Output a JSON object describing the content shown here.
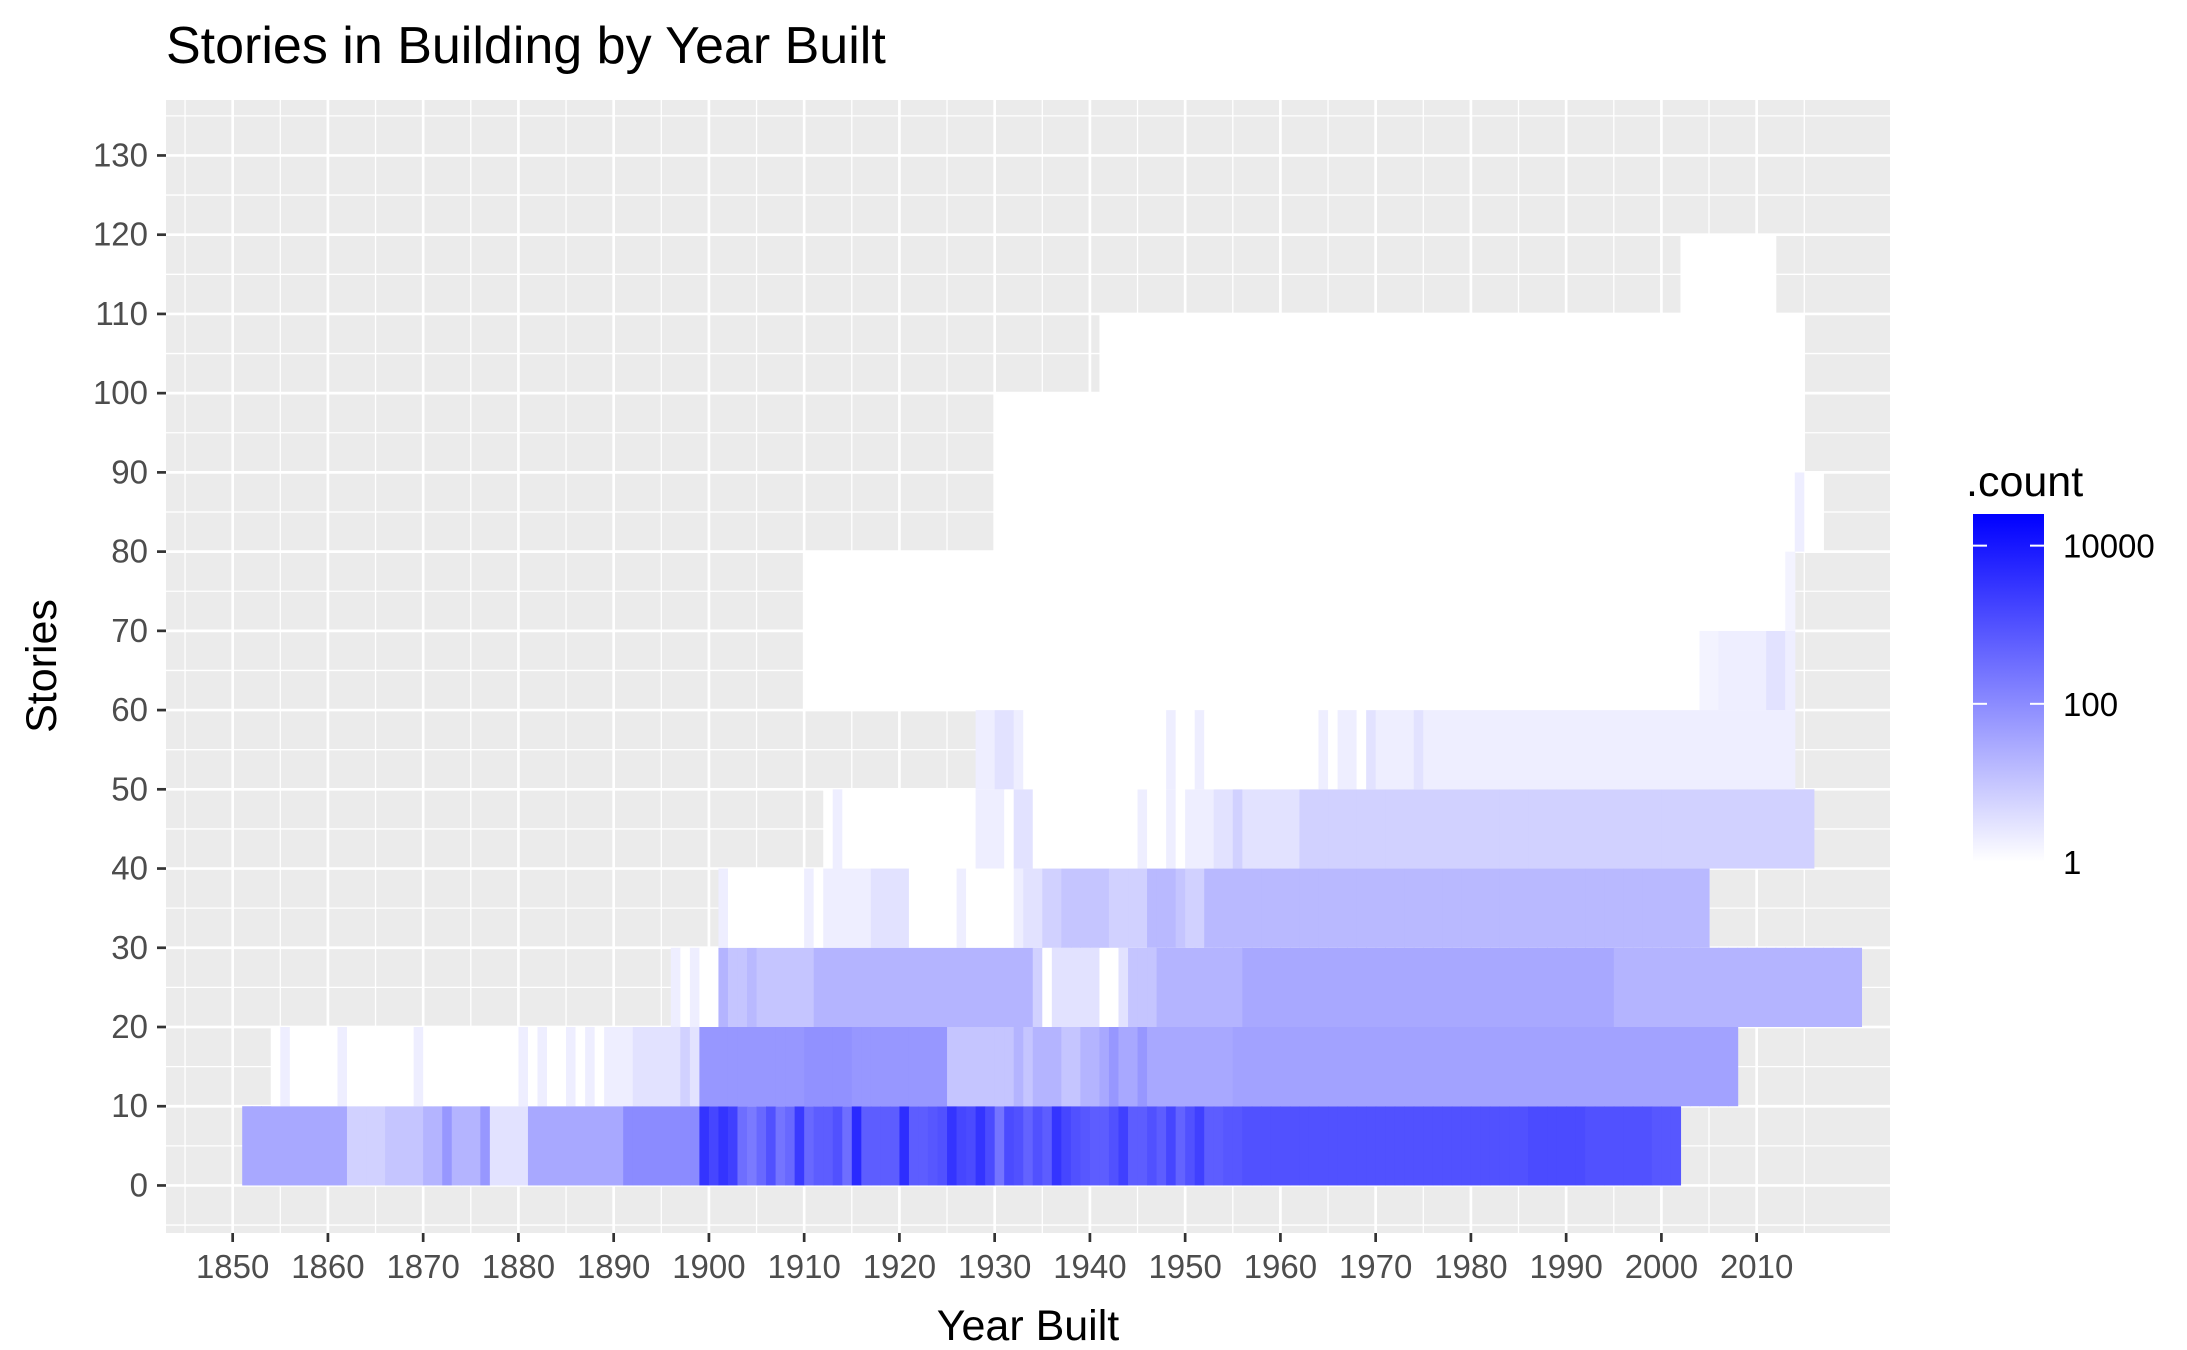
{
  "chart_data": {
    "type": "heatmap",
    "title": "Stories in Building by Year Built",
    "xlabel": "Year Built",
    "ylabel": "Stories",
    "xlim": [
      1843,
      2024
    ],
    "ylim": [
      -6,
      137
    ],
    "x_ticks": [
      "1850",
      "1860",
      "1870",
      "1880",
      "1890",
      "1900",
      "1910",
      "1920",
      "1930",
      "1940",
      "1950",
      "1960",
      "1970",
      "1980",
      "1990",
      "2000",
      "2010"
    ],
    "y_ticks": [
      "0",
      "10",
      "20",
      "30",
      "40",
      "50",
      "60",
      "70",
      "80",
      "90",
      "100",
      "110",
      "120",
      "130"
    ],
    "bin_width_years": 1,
    "bin_height_stories": 10,
    "row_labels": [
      "0-10",
      "10-20",
      "20-30",
      "30-40",
      "40-50",
      "50-60",
      "60-70",
      "70-80",
      "80-90",
      "90-100",
      "100-110",
      "110-120"
    ],
    "row_start_years": [
      1851,
      1854,
      1896,
      1901,
      1912,
      1928,
      1910,
      1910,
      1930,
      1930,
      1941,
      2002
    ],
    "rows": [
      [
        1.5,
        1.5,
        1.5,
        1.5,
        1.5,
        1.5,
        1.5,
        1.5,
        1.5,
        1.5,
        1.5,
        0.8,
        0.8,
        0.8,
        0.8,
        1,
        1,
        1,
        1,
        1.3,
        1.3,
        1.8,
        1.3,
        1.3,
        1.3,
        1.8,
        0.5,
        0.5,
        0.5,
        0.5,
        1.5,
        1.5,
        1.5,
        1.5,
        1.5,
        1.5,
        1.5,
        1.5,
        1.5,
        1.5,
        2.0,
        2.0,
        2.0,
        2.0,
        2.0,
        2.0,
        2.0,
        2.0,
        3.5,
        3.2,
        3.5,
        3.3,
        2.5,
        2.3,
        2.6,
        3.0,
        2.4,
        2.6,
        3.4,
        2.6,
        2.8,
        2.8,
        3.0,
        2.5,
        3.7,
        2.8,
        2.8,
        2.8,
        2.8,
        3.6,
        2.8,
        2.8,
        2.9,
        3.0,
        3.5,
        3.2,
        3.1,
        3.5,
        3.1,
        2.4,
        3.1,
        3.0,
        2.7,
        3.0,
        2.8,
        3.5,
        3.2,
        3.0,
        2.9,
        2.8,
        2.8,
        3.0,
        3.3,
        2.8,
        2.8,
        3.0,
        2.8,
        3.2,
        2.7,
        3.0,
        3.3,
        2.8,
        2.8,
        2.9,
        2.9,
        3.0,
        3.0,
        3.0,
        3.0,
        3.0,
        3.0,
        3.0,
        3.0,
        3.0,
        3.0,
        3.0,
        3.0,
        3.0,
        3.0,
        3.0,
        3.0,
        3.0,
        3.0,
        3.0,
        3.0,
        3.0,
        3.0,
        3.0,
        3.0,
        3.0,
        3.0,
        3.0,
        3.0,
        3.0,
        3.0,
        3.1,
        3.1,
        3.1,
        3.1,
        3.1,
        3.1,
        3.0,
        3.0,
        3.0,
        3.0,
        3.0,
        3.0,
        3.0,
        2.9,
        2.9,
        2.9
      ],
      [
        0,
        0.3,
        0,
        0,
        0,
        0,
        0,
        0.3,
        0,
        0,
        0,
        0,
        0,
        0,
        0,
        0.3,
        0,
        0,
        0,
        0,
        0,
        0,
        0,
        0,
        0,
        0,
        0.3,
        0,
        0.3,
        0,
        0,
        0.3,
        0,
        0.3,
        0,
        0.3,
        0.3,
        0.3,
        0.5,
        0.5,
        0.5,
        0.5,
        0.5,
        0.8,
        0.5,
        1.8,
        1.8,
        1.8,
        1.8,
        1.8,
        1.8,
        1.8,
        1.8,
        1.8,
        1.8,
        1.8,
        1.9,
        1.9,
        1.9,
        1.9,
        1.9,
        1.8,
        1.8,
        1.8,
        1.8,
        1.8,
        1.8,
        1.8,
        1.8,
        1.8,
        1.8,
        1.0,
        1.0,
        1.0,
        1.0,
        1.0,
        1.0,
        1.0,
        1.3,
        1.0,
        1.3,
        1.3,
        1.3,
        1.0,
        1.0,
        1.3,
        1.3,
        1.5,
        1.8,
        1.5,
        1.5,
        1.8,
        1.5,
        1.5,
        1.5,
        1.5,
        1.5,
        1.5,
        1.5,
        1.5,
        1.5,
        1.6,
        1.6,
        1.6,
        1.6,
        1.6,
        1.6,
        1.6,
        1.6,
        1.6,
        1.6,
        1.6,
        1.6,
        1.6,
        1.6,
        1.6,
        1.6,
        1.6,
        1.6,
        1.6,
        1.6,
        1.6,
        1.6,
        1.6,
        1.6,
        1.6,
        1.6,
        1.6,
        1.6,
        1.6,
        1.6,
        1.6,
        1.6,
        1.6,
        1.6,
        1.6,
        1.6,
        1.6,
        1.6,
        1.6,
        1.6,
        1.6,
        1.6,
        1.6,
        1.6,
        1.6,
        1.6,
        1.6,
        1.6,
        1.6,
        1.6,
        1.6,
        1.6,
        1.6
      ],
      [
        0.3,
        0,
        0.3,
        0,
        0,
        1.3,
        1.0,
        1.0,
        1.2,
        1.0,
        1.0,
        1.0,
        1.0,
        1.0,
        1.0,
        1.3,
        1.3,
        1.3,
        1.3,
        1.3,
        1.3,
        1.3,
        1.3,
        1.3,
        1.3,
        1.3,
        1.3,
        1.3,
        1.3,
        1.3,
        1.3,
        1.3,
        1.3,
        1.3,
        1.3,
        1.3,
        1.3,
        1.3,
        0.8,
        0,
        0.5,
        0.5,
        0.5,
        0.5,
        0.5,
        0,
        0,
        0.5,
        1.0,
        1.0,
        1.0,
        1.3,
        1.3,
        1.3,
        1.3,
        1.3,
        1.3,
        1.3,
        1.3,
        1.3,
        1.5,
        1.5,
        1.5,
        1.5,
        1.5,
        1.5,
        1.5,
        1.5,
        1.5,
        1.5,
        1.5,
        1.5,
        1.5,
        1.5,
        1.5,
        1.5,
        1.5,
        1.5,
        1.5,
        1.5,
        1.5,
        1.5,
        1.5,
        1.5,
        1.5,
        1.5,
        1.5,
        1.5,
        1.5,
        1.5,
        1.5,
        1.5,
        1.5,
        1.5,
        1.5,
        1.5,
        1.5,
        1.5,
        1.5,
        1.3,
        1.3,
        1.3,
        1.3,
        1.3,
        1.3,
        1.3,
        1.3,
        1.3,
        1.3,
        1.3,
        1.3,
        1.3,
        1.3,
        1.3,
        1.3,
        1.3,
        1.3,
        1.3,
        1.3,
        1.3,
        1.3,
        1.3,
        1.3,
        1.3,
        1.3
      ],
      [
        0.3,
        0,
        0,
        0,
        0,
        0,
        0,
        0,
        0,
        0.3,
        0,
        0.3,
        0.3,
        0.3,
        0.3,
        0.3,
        0.5,
        0.5,
        0.5,
        0.5,
        0,
        0,
        0,
        0,
        0,
        0.3,
        0,
        0,
        0,
        0,
        0,
        0.3,
        0.5,
        0.5,
        0.8,
        0.8,
        1.0,
        1.0,
        1.0,
        1.0,
        1.0,
        0.8,
        0.8,
        0.8,
        0.8,
        1.2,
        1.2,
        1.2,
        1.0,
        0.8,
        0.8,
        1.2,
        1.2,
        1.2,
        1.2,
        1.2,
        1.2,
        1.2,
        1.2,
        1.2,
        1.2,
        1.2,
        1.2,
        1.2,
        1.2,
        1.2,
        1.2,
        1.2,
        1.2,
        1.2,
        1.2,
        1.2,
        1.2,
        1.2,
        1.2,
        1.2,
        1.2,
        1.2,
        1.2,
        1.2,
        1.2,
        1.2,
        1.2,
        1.2,
        1.2,
        1.2,
        1.2,
        1.2,
        1.2,
        1.2,
        1.2,
        1.2,
        1.2,
        1.2,
        1.2,
        1.2,
        1.2,
        1.2,
        1.2,
        1.2,
        1.2,
        1.2,
        1.2,
        1.2
      ],
      [
        0,
        0.3,
        0,
        0,
        0,
        0,
        0,
        0,
        0,
        0,
        0,
        0,
        0,
        0,
        0,
        0,
        0.3,
        0.3,
        0.3,
        0,
        0.5,
        0.5,
        0,
        0,
        0,
        0,
        0,
        0,
        0,
        0,
        0,
        0,
        0,
        0.3,
        0,
        0,
        0.3,
        0,
        0.3,
        0.3,
        0.3,
        0.5,
        0.5,
        0.8,
        0.5,
        0.5,
        0.5,
        0.5,
        0.5,
        0.5,
        0.8,
        0.8,
        0.8,
        0.8,
        0.8,
        0.8,
        0.8,
        0.8,
        0.8,
        0.8,
        0.8,
        0.8,
        0.8,
        0.8,
        0.8,
        0.8,
        0.8,
        0.8,
        0.8,
        0.8,
        0.8,
        0.8,
        0.8,
        0.8,
        0.8,
        0.8,
        0.8,
        0.8,
        0.8,
        0.8,
        0.8,
        0.8,
        0.8,
        0.8,
        0.8,
        0.8,
        0.8,
        0.8,
        0.8,
        0.8,
        0.8,
        0.8,
        0.8,
        0.8,
        0.8,
        0.8,
        0.8,
        0.8,
        0.8,
        0.8,
        0.8,
        0.8,
        0.8,
        0.8
      ],
      [
        0.3,
        0.3,
        0.5,
        0.5,
        0.3,
        0,
        0,
        0,
        0,
        0,
        0,
        0,
        0,
        0,
        0,
        0,
        0,
        0,
        0,
        0,
        0.3,
        0,
        0,
        0.3,
        0,
        0,
        0,
        0,
        0,
        0,
        0,
        0,
        0,
        0,
        0,
        0,
        0.3,
        0,
        0.3,
        0.3,
        0,
        0.5,
        0.3,
        0.3,
        0.3,
        0.3,
        0.5,
        0.3,
        0.3,
        0.3,
        0.3,
        0.3,
        0.3,
        0.3,
        0.3,
        0.3,
        0.3,
        0.3,
        0.3,
        0.3,
        0.3,
        0.3,
        0.3,
        0.3,
        0.3,
        0.3,
        0.3,
        0.3,
        0.3,
        0.3,
        0.3,
        0.3,
        0.3,
        0.3,
        0.3,
        0.3,
        0.3,
        0.3,
        0.3,
        0.3,
        0.3,
        0.3,
        0.3,
        0.3,
        0.3,
        0.3
      ],
      [
        0,
        0,
        0,
        0,
        0,
        0,
        0,
        0,
        0,
        0,
        0,
        0,
        0,
        0,
        0,
        0,
        0,
        0,
        0,
        0,
        0,
        0,
        0,
        0,
        0,
        0,
        0,
        0,
        0,
        0,
        0,
        0,
        0,
        0,
        0,
        0,
        0,
        0,
        0,
        0,
        0,
        0,
        0,
        0,
        0,
        0,
        0,
        0,
        0,
        0,
        0,
        0,
        0,
        0,
        0,
        0,
        0,
        0,
        0,
        0,
        0,
        0,
        0,
        0,
        0,
        0,
        0,
        0,
        0,
        0,
        0,
        0,
        0,
        0,
        0,
        0,
        0,
        0,
        0,
        0,
        0,
        0,
        0,
        0,
        0,
        0,
        0,
        0,
        0,
        0,
        0,
        0,
        0,
        0,
        0.2,
        0.2,
        0.3,
        0.3,
        0.3,
        0.3,
        0.3,
        0.5,
        0.5,
        0.3
      ],
      [
        0,
        0,
        0,
        0,
        0,
        0,
        0,
        0,
        0,
        0,
        0,
        0,
        0,
        0,
        0,
        0,
        0,
        0,
        0,
        0,
        0,
        0,
        0,
        0,
        0,
        0,
        0,
        0,
        0,
        0,
        0,
        0,
        0,
        0,
        0,
        0,
        0,
        0,
        0,
        0,
        0,
        0,
        0,
        0,
        0,
        0,
        0,
        0,
        0,
        0,
        0,
        0,
        0,
        0,
        0,
        0,
        0,
        0,
        0,
        0,
        0,
        0,
        0,
        0,
        0,
        0,
        0,
        0,
        0,
        0,
        0,
        0,
        0,
        0,
        0,
        0,
        0,
        0,
        0,
        0,
        0,
        0,
        0,
        0,
        0,
        0,
        0,
        0,
        0,
        0,
        0,
        0,
        0,
        0,
        0,
        0,
        0,
        0,
        0,
        0,
        0,
        0,
        0,
        0.2
      ],
      [
        0,
        0,
        0,
        0,
        0,
        0,
        0,
        0,
        0,
        0,
        0,
        0,
        0,
        0,
        0,
        0,
        0,
        0,
        0,
        0,
        0,
        0,
        0,
        0,
        0,
        0,
        0,
        0,
        0,
        0,
        0,
        0,
        0,
        0,
        0,
        0,
        0,
        0,
        0,
        0,
        0,
        0,
        0,
        0,
        0,
        0,
        0,
        0,
        0,
        0,
        0,
        0,
        0,
        0,
        0,
        0,
        0,
        0,
        0,
        0,
        0,
        0,
        0,
        0,
        0,
        0,
        0,
        0,
        0,
        0,
        0,
        0,
        0,
        0,
        0,
        0,
        0,
        0,
        0,
        0,
        0,
        0,
        0,
        0,
        0.3,
        0,
        0
      ],
      [
        0,
        0,
        0,
        0,
        0,
        0,
        0,
        0,
        0,
        0,
        0,
        0,
        0,
        0,
        0,
        0,
        0,
        0,
        0,
        0,
        0,
        0,
        0,
        0,
        0,
        0,
        0,
        0,
        0,
        0,
        0,
        0,
        0,
        0,
        0,
        0,
        0,
        0,
        0,
        0,
        0,
        0,
        0,
        0,
        0,
        0,
        0,
        0,
        0,
        0,
        0,
        0,
        0,
        0,
        0,
        0,
        0,
        0,
        0,
        0,
        0,
        0,
        0,
        0,
        0,
        0,
        0,
        0,
        0,
        0,
        0,
        0,
        0,
        0,
        0,
        0,
        0,
        0,
        0,
        0,
        0,
        0,
        0,
        0,
        0
      ],
      [
        0,
        0,
        0,
        0,
        0,
        0,
        0,
        0,
        0,
        0,
        0,
        0,
        0,
        0,
        0,
        0,
        0,
        0,
        0,
        0,
        0,
        0,
        0,
        0,
        0,
        0,
        0,
        0,
        0,
        0,
        0,
        0,
        0,
        0,
        0,
        0,
        0,
        0,
        0,
        0,
        0,
        0,
        0,
        0,
        0,
        0,
        0,
        0,
        0,
        0,
        0,
        0,
        0,
        0,
        0,
        0,
        0,
        0,
        0,
        0,
        0,
        0,
        0,
        0,
        0,
        0,
        0,
        0,
        0,
        0,
        0,
        0,
        0,
        0
      ],
      [
        0,
        0,
        0,
        0,
        0,
        0,
        0,
        0,
        0,
        0
      ]
    ],
    "log10_count_encoding": true,
    "legend": {
      "title": ".count",
      "scale": "log10",
      "labels": [
        "1",
        "100",
        "10000"
      ],
      "label_log10_values": [
        0,
        2,
        4
      ],
      "range_log10": [
        0,
        4.4
      ],
      "low_color": "#ffffff",
      "high_color": "#0000ff",
      "position": "right"
    },
    "panel_background": "#ebebeb",
    "grid": true
  }
}
